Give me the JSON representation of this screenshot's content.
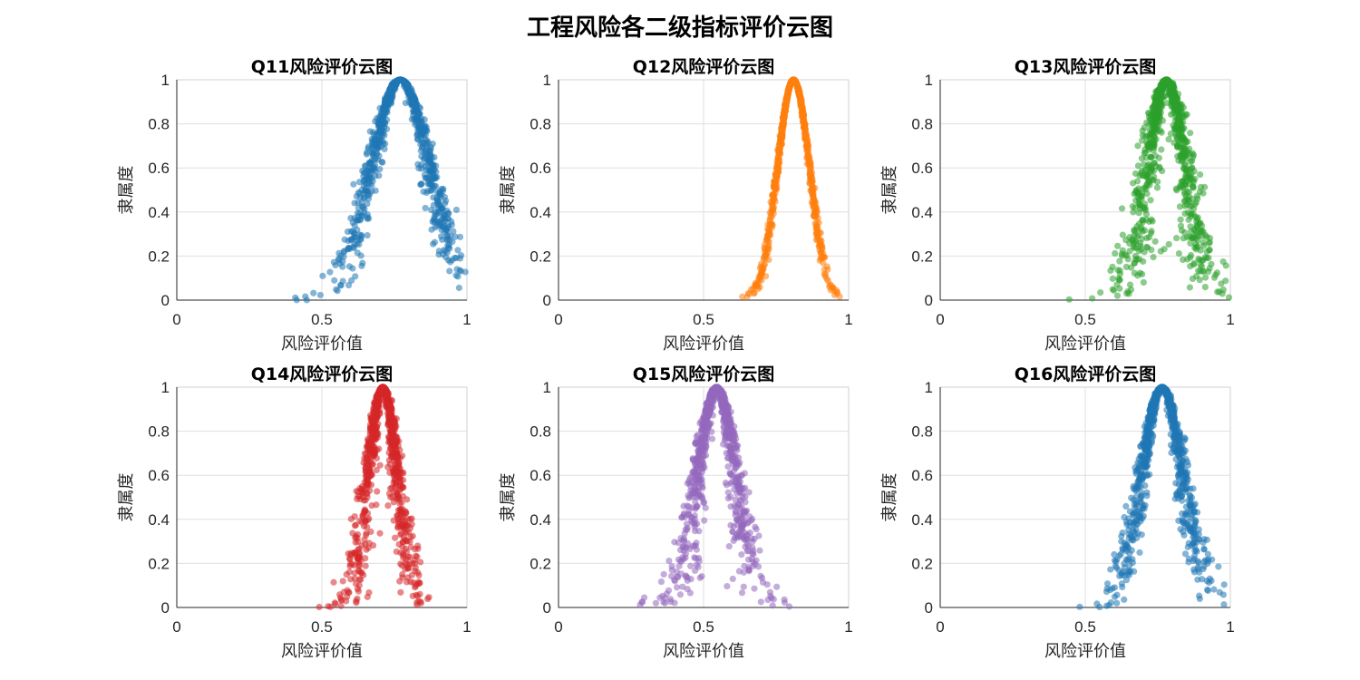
{
  "figure": {
    "title": "工程风险各二级指标评价云图"
  },
  "chart_data": [
    {
      "type": "scatter",
      "title": "Q11风险评价云图",
      "xlabel": "风险评价值",
      "ylabel": "隶属度",
      "xlim": [
        0,
        1
      ],
      "ylim": [
        0,
        1
      ],
      "x_ticks": [
        "0",
        "0.5",
        "1"
      ],
      "y_ticks": [
        "0",
        "0.2",
        "0.4",
        "0.6",
        "0.8",
        "1"
      ],
      "cloud": {
        "Ex": 0.77,
        "En": 0.1,
        "He": 0.015,
        "n": 1000
      },
      "color": "#1f77b4",
      "grid": true
    },
    {
      "type": "scatter",
      "title": "Q12风险评价云图",
      "xlabel": "风险评价值",
      "ylabel": "隶属度",
      "xlim": [
        0,
        1
      ],
      "ylim": [
        0,
        1
      ],
      "x_ticks": [
        "0",
        "0.5",
        "1"
      ],
      "y_ticks": [
        "0",
        "0.2",
        "0.4",
        "0.6",
        "0.8",
        "1"
      ],
      "cloud": {
        "Ex": 0.81,
        "En": 0.055,
        "He": 0.003,
        "n": 1000
      },
      "color": "#ff7f0e",
      "grid": true
    },
    {
      "type": "scatter",
      "title": "Q13风险评价云图",
      "xlabel": "风险评价值",
      "ylabel": "隶属度",
      "xlim": [
        0,
        1
      ],
      "ylim": [
        0,
        1
      ],
      "x_ticks": [
        "0",
        "0.5",
        "1"
      ],
      "y_ticks": [
        "0",
        "0.2",
        "0.4",
        "0.6",
        "0.8",
        "1"
      ],
      "cloud": {
        "Ex": 0.78,
        "En": 0.065,
        "He": 0.02,
        "n": 1000
      },
      "color": "#2ca02c",
      "grid": true
    },
    {
      "type": "scatter",
      "title": "Q14风险评价云图",
      "xlabel": "风险评价值",
      "ylabel": "隶属度",
      "xlim": [
        0,
        1
      ],
      "ylim": [
        0,
        1
      ],
      "x_ticks": [
        "0",
        "0.5",
        "1"
      ],
      "y_ticks": [
        "0",
        "0.2",
        "0.4",
        "0.6",
        "0.8",
        "1"
      ],
      "cloud": {
        "Ex": 0.71,
        "En": 0.05,
        "He": 0.012,
        "n": 1000
      },
      "color": "#d62728",
      "grid": true
    },
    {
      "type": "scatter",
      "title": "Q15风险评价云图",
      "xlabel": "风险评价值",
      "ylabel": "隶属度",
      "xlim": [
        0,
        1
      ],
      "ylim": [
        0,
        1
      ],
      "x_ticks": [
        "0",
        "0.5",
        "1"
      ],
      "y_ticks": [
        "0",
        "0.2",
        "0.4",
        "0.6",
        "0.8",
        "1"
      ],
      "cloud": {
        "Ex": 0.545,
        "En": 0.065,
        "He": 0.015,
        "n": 1000
      },
      "color": "#9467bd",
      "grid": true
    },
    {
      "type": "scatter",
      "title": "Q16风险评价云图",
      "xlabel": "风险评价值",
      "ylabel": "隶属度",
      "xlim": [
        0,
        1
      ],
      "ylim": [
        0,
        1
      ],
      "x_ticks": [
        "0",
        "0.5",
        "1"
      ],
      "y_ticks": [
        "0",
        "0.2",
        "0.4",
        "0.6",
        "0.8",
        "1"
      ],
      "cloud": {
        "Ex": 0.765,
        "En": 0.07,
        "He": 0.013,
        "n": 1000
      },
      "color": "#1f77b4",
      "grid": true
    }
  ]
}
